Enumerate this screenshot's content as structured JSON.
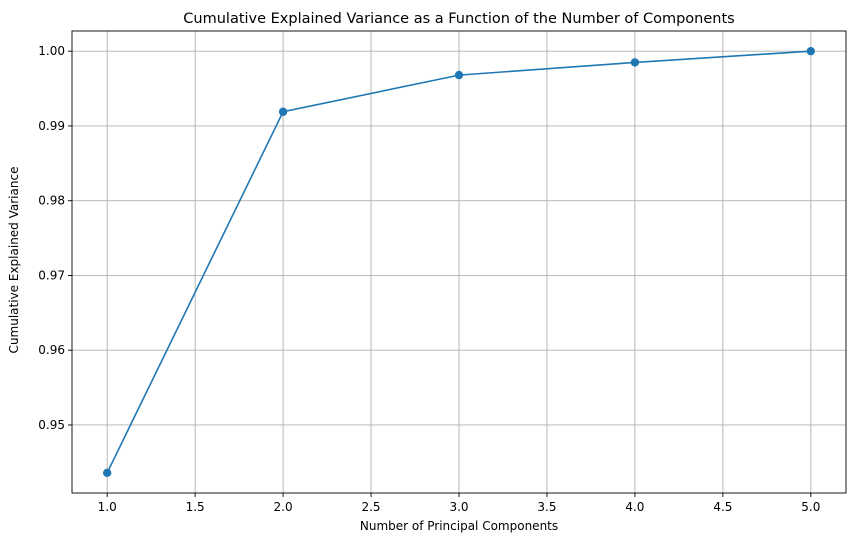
{
  "chart_data": {
    "type": "line",
    "title": "Cumulative Explained Variance as a Function of the Number of Components",
    "xlabel": "Number of Principal Components",
    "ylabel": "Cumulative Explained Variance",
    "x": [
      1,
      2,
      3,
      4,
      5
    ],
    "series": [
      {
        "values": [
          0.9436,
          0.9919,
          0.9968,
          0.9985,
          1.0
        ],
        "color": "#1f77b4",
        "marker": "circle"
      }
    ],
    "xlim": [
      0.8,
      5.2
    ],
    "ylim": [
      0.9409,
      1.0027
    ],
    "xticks": [
      1.0,
      1.5,
      2.0,
      2.5,
      3.0,
      3.5,
      4.0,
      4.5,
      5.0
    ],
    "xtick_labels": [
      "1.0",
      "1.5",
      "2.0",
      "2.5",
      "3.0",
      "3.5",
      "4.0",
      "4.5",
      "5.0"
    ],
    "yticks": [
      0.95,
      0.96,
      0.97,
      0.98,
      0.99,
      1.0
    ],
    "ytick_labels": [
      "0.95",
      "0.96",
      "0.97",
      "0.98",
      "0.99",
      "1.00"
    ],
    "grid": true,
    "grid_color": "#b0b0b0",
    "legend": false
  }
}
